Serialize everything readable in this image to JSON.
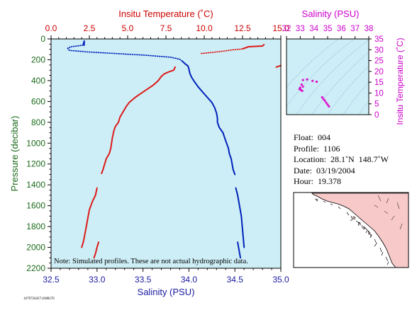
{
  "chart_data": [
    {
      "type": "line",
      "name": "main-profile",
      "top_axis_label": "Insitu Temperature (˚C)",
      "bottom_axis_label": "Salinity (PSU)",
      "left_axis_label": "Pressure (decibar)",
      "temperature_range": [
        0.0,
        15.0
      ],
      "temperature_ticks": [
        "0.0",
        "2.5",
        "5.0",
        "7.5",
        "10.0",
        "12.5",
        "15.0"
      ],
      "salinity_range": [
        32.5,
        35.0
      ],
      "salinity_ticks": [
        "32.5",
        "33.0",
        "33.5",
        "34.0",
        "34.5",
        "35.0"
      ],
      "pressure_range": [
        0,
        2200
      ],
      "pressure_ticks": [
        "0",
        "200",
        "400",
        "600",
        "800",
        "1000",
        "1200",
        "1400",
        "1600",
        "1800",
        "2000",
        "2200"
      ],
      "note": "Note: Simulated profiles.  These are not actual hydrographic data.",
      "colors": {
        "temperature": "#dd1a1a",
        "salinity": "#0022bb",
        "background": "#cdeef6",
        "axis_temperature": "#cc0000",
        "axis_salinity": "#1a1aa0",
        "axis_pressure": "#1a6a1a"
      },
      "temperature_segments": [
        {
          "style": "dotted",
          "points": [
            [
              9.8,
              140
            ],
            [
              10.5,
              130
            ],
            [
              11.2,
              118
            ],
            [
              11.8,
              106
            ],
            [
              12.5,
              96
            ]
          ]
        },
        {
          "style": "solid",
          "points": [
            [
              12.5,
              96
            ],
            [
              12.9,
              75
            ],
            [
              13.8,
              68
            ],
            [
              13.9,
              55
            ]
          ]
        },
        {
          "style": "solid",
          "points": [
            [
              14.7,
              270
            ],
            [
              14.9,
              260
            ],
            [
              15.0,
              255
            ]
          ]
        },
        {
          "style": "solid",
          "points": [
            [
              8.1,
              270
            ],
            [
              8.0,
              300
            ],
            [
              7.7,
              315
            ],
            [
              7.4,
              335
            ],
            [
              7.2,
              360
            ],
            [
              7.0,
              400
            ],
            [
              6.7,
              440
            ],
            [
              6.3,
              480
            ],
            [
              5.9,
              520
            ],
            [
              5.5,
              560
            ],
            [
              5.1,
              610
            ],
            [
              4.9,
              650
            ],
            [
              4.7,
              700
            ],
            [
              4.5,
              750
            ],
            [
              4.4,
              800
            ],
            [
              4.2,
              840
            ],
            [
              4.1,
              880
            ],
            [
              4.0,
              950
            ],
            [
              3.95,
              1000
            ],
            [
              3.9,
              1050
            ],
            [
              3.8,
              1100
            ],
            [
              3.6,
              1150
            ],
            [
              3.5,
              1200
            ],
            [
              3.4,
              1250
            ],
            [
              3.3,
              1290
            ]
          ]
        },
        {
          "style": "solid",
          "points": [
            [
              3.0,
              1430
            ],
            [
              2.9,
              1500
            ],
            [
              2.7,
              1560
            ],
            [
              2.5,
              1640
            ],
            [
              2.4,
              1720
            ],
            [
              2.3,
              1800
            ],
            [
              2.2,
              1880
            ],
            [
              2.1,
              1950
            ],
            [
              2.0,
              2000
            ]
          ]
        },
        {
          "style": "solid",
          "points": [
            [
              3.1,
              1950
            ],
            [
              3.0,
              2000
            ],
            [
              2.9,
              2060
            ],
            [
              2.8,
              2100
            ]
          ]
        }
      ],
      "salinity_segments": [
        {
          "style": "solid",
          "points": [
            [
              32.86,
              60
            ],
            [
              32.86,
              20
            ],
            [
              32.85,
              55
            ]
          ]
        },
        {
          "style": "dotted",
          "points": [
            [
              32.85,
              60
            ],
            [
              32.72,
              75
            ],
            [
              32.68,
              90
            ],
            [
              32.7,
              110
            ],
            [
              32.9,
              125
            ],
            [
              33.2,
              140
            ],
            [
              33.5,
              155
            ],
            [
              33.8,
              175
            ],
            [
              33.9,
              195
            ],
            [
              33.93,
              215
            ]
          ]
        },
        {
          "style": "solid",
          "points": [
            [
              33.93,
              215
            ],
            [
              33.96,
              240
            ],
            [
              33.99,
              260
            ],
            [
              34.0,
              290
            ],
            [
              34.01,
              330
            ],
            [
              34.03,
              370
            ],
            [
              34.06,
              410
            ],
            [
              34.1,
              460
            ],
            [
              34.15,
              510
            ],
            [
              34.2,
              560
            ],
            [
              34.25,
              610
            ],
            [
              34.28,
              660
            ],
            [
              34.3,
              710
            ],
            [
              34.31,
              760
            ],
            [
              34.31,
              800
            ],
            [
              34.33,
              850
            ],
            [
              34.37,
              900
            ],
            [
              34.39,
              950
            ],
            [
              34.41,
              1000
            ],
            [
              34.43,
              1050
            ],
            [
              34.44,
              1100
            ],
            [
              34.46,
              1150
            ],
            [
              34.47,
              1200
            ],
            [
              34.48,
              1250
            ],
            [
              34.5,
              1300
            ]
          ]
        },
        {
          "style": "solid",
          "points": [
            [
              34.51,
              1430
            ],
            [
              34.53,
              1500
            ],
            [
              34.55,
              1600
            ],
            [
              34.57,
              1700
            ],
            [
              34.58,
              1800
            ],
            [
              34.59,
              1900
            ],
            [
              34.6,
              2000
            ]
          ]
        },
        {
          "style": "solid",
          "points": [
            [
              34.53,
              1950
            ],
            [
              34.54,
              2000
            ],
            [
              34.55,
              2050
            ],
            [
              34.56,
              2100
            ]
          ]
        }
      ]
    },
    {
      "type": "scatter",
      "name": "ts-diagram",
      "top_axis_label": "Salinity (PSU)",
      "right_axis_label": "Insitu Temperature (˚C)",
      "salinity_ticks": [
        "32",
        "33",
        "34",
        "35",
        "36",
        "37",
        "38"
      ],
      "salinity_range": [
        32,
        38
      ],
      "temperature_ticks": [
        "0",
        "5",
        "10",
        "15",
        "20",
        "25",
        "30",
        "35"
      ],
      "temperature_range": [
        0,
        35
      ],
      "colors": {
        "points": "#dd11cc",
        "axis": "#cc00cc",
        "background": "#cdeef6",
        "contours": "#7aa0c8"
      },
      "points": [
        [
          33.1,
          13.9
        ],
        [
          33.2,
          13.0
        ],
        [
          33.0,
          12.5
        ],
        [
          32.95,
          11.8
        ],
        [
          33.05,
          11.4
        ],
        [
          33.15,
          11.0
        ],
        [
          33.2,
          16.0
        ],
        [
          33.5,
          16.3
        ],
        [
          33.9,
          15.6
        ],
        [
          34.2,
          15.2
        ],
        [
          34.6,
          8.0
        ],
        [
          34.7,
          7.2
        ],
        [
          34.8,
          6.4
        ],
        [
          34.9,
          5.5
        ],
        [
          35.0,
          4.6
        ],
        [
          35.1,
          3.8
        ]
      ]
    }
  ],
  "float_info": {
    "float_line": "Float:  004",
    "profile_line": "Profile:  1106",
    "location_line": "Location:  28.1˚N  148.7˚W",
    "date_line": "Date:  03/19/2004",
    "hour_line": "Hour:  19.378"
  },
  "map": {
    "land_color": "#f7c9c9",
    "water_color": "#ffffff",
    "coast_color": "#000000"
  },
  "footer_id": "1079726457.0388276"
}
